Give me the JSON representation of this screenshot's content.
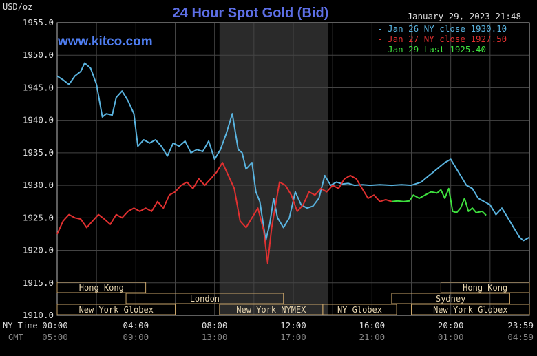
{
  "chart_data": {
    "type": "line",
    "title": "24 Hour Spot Gold (Bid)",
    "subtitle": "www.kitco.com",
    "timestamp": "January 29, 2023 21:48",
    "ylabel": "USD/oz",
    "ylim": [
      1910,
      1955
    ],
    "yticks": [
      "1955.0",
      "1950.0",
      "1945.0",
      "1940.0",
      "1935.0",
      "1930.0",
      "1925.0",
      "1920.0",
      "1915.0",
      "1910.0"
    ],
    "xlim": [
      0,
      24
    ],
    "ny_time_label": "NY Time",
    "gmt_label": "GMT",
    "ny_ticks": [
      "00:00",
      "04:00",
      "08:00",
      "12:00",
      "16:00",
      "20:00",
      "23:59"
    ],
    "gmt_ticks": [
      "05:00",
      "09:00",
      "13:00",
      "17:00",
      "21:00",
      "01:00",
      "04:59"
    ],
    "shaded_x": [
      8.25,
      13.75
    ],
    "legend": [
      {
        "text": "Jan 26 NY close 1930.10",
        "color": "#5ab4e0"
      },
      {
        "text": "Jan 27 NY close 1927.50",
        "color": "#e03030"
      },
      {
        "text": "Jan 29 Last 1925.40",
        "color": "#3ee03e"
      }
    ],
    "sessions": [
      {
        "label": "Hong Kong",
        "x0": 0,
        "x1": 4.5,
        "row": 0
      },
      {
        "label": "Hong Kong",
        "x0": 19.5,
        "x1": 24,
        "row": 0
      },
      {
        "label": "London",
        "x0": 3.5,
        "x1": 11.5,
        "row": 1
      },
      {
        "label": "Sydney",
        "x0": 17.0,
        "x1": 23.0,
        "row": 1
      },
      {
        "label": "New York Globex",
        "x0": 0,
        "x1": 6.0,
        "row": 2
      },
      {
        "label": "New York NYMEX",
        "x0": 8.25,
        "x1": 13.5,
        "row": 2
      },
      {
        "label": "NY Globex",
        "x0": 13.5,
        "x1": 17.25,
        "row": 2
      },
      {
        "label": "New York Globex",
        "x0": 18.0,
        "x1": 24,
        "row": 2
      }
    ],
    "series": [
      {
        "name": "Jan 26 NY close 1930.10",
        "color": "#5ab4e0",
        "x": [
          0,
          0.3,
          0.6,
          0.9,
          1.2,
          1.4,
          1.7,
          2.0,
          2.3,
          2.5,
          2.8,
          3.0,
          3.3,
          3.6,
          3.9,
          4.1,
          4.4,
          4.7,
          5.0,
          5.3,
          5.6,
          5.9,
          6.2,
          6.5,
          6.8,
          7.1,
          7.4,
          7.7,
          8.0,
          8.3,
          8.6,
          8.9,
          9.2,
          9.4,
          9.6,
          9.9,
          10.1,
          10.3,
          10.6,
          10.8,
          11.0,
          11.2,
          11.5,
          11.8,
          12.1,
          12.4,
          12.7,
          13.0,
          13.3,
          13.6,
          13.9,
          14.2,
          14.5,
          14.8,
          15.1,
          15.5,
          15.9,
          16.4,
          17.0,
          17.5,
          18.0,
          18.5,
          18.9,
          19.3,
          19.7,
          20.0,
          20.2,
          20.5,
          20.8,
          21.1,
          21.4,
          21.7,
          22.0,
          22.3,
          22.6,
          22.9,
          23.2,
          23.5,
          23.7,
          23.99
        ],
        "y": [
          1946.8,
          1946.2,
          1945.5,
          1946.8,
          1947.5,
          1948.8,
          1948.0,
          1945.5,
          1940.5,
          1941.0,
          1940.8,
          1943.5,
          1944.5,
          1943.0,
          1941.0,
          1936.0,
          1937.0,
          1936.5,
          1937.0,
          1936.0,
          1934.5,
          1936.5,
          1936.0,
          1936.8,
          1935.0,
          1935.5,
          1935.2,
          1936.8,
          1934.0,
          1935.5,
          1938.0,
          1941.0,
          1935.5,
          1935.0,
          1932.5,
          1933.5,
          1929.0,
          1927.5,
          1921.5,
          1924.0,
          1928.0,
          1925.0,
          1923.5,
          1925.0,
          1929.0,
          1927.0,
          1926.5,
          1926.8,
          1928.0,
          1931.5,
          1930.0,
          1930.5,
          1930.2,
          1930.3,
          1930.0,
          1930.1,
          1930.0,
          1930.1,
          1930.0,
          1930.1,
          1930.0,
          1930.5,
          1931.5,
          1932.5,
          1933.5,
          1934.0,
          1933.0,
          1931.5,
          1930.0,
          1929.5,
          1928.0,
          1927.5,
          1927.0,
          1925.5,
          1926.5,
          1925.0,
          1923.5,
          1922.0,
          1921.5,
          1922.0
        ]
      },
      {
        "name": "Jan 27 NY close 1927.50",
        "color": "#e03030",
        "x": [
          0,
          0.3,
          0.6,
          0.9,
          1.2,
          1.5,
          1.8,
          2.1,
          2.4,
          2.7,
          3.0,
          3.3,
          3.6,
          3.9,
          4.2,
          4.5,
          4.8,
          5.1,
          5.4,
          5.7,
          6.0,
          6.3,
          6.6,
          6.9,
          7.2,
          7.5,
          7.8,
          8.1,
          8.4,
          8.7,
          9.0,
          9.3,
          9.6,
          9.9,
          10.2,
          10.5,
          10.7,
          10.9,
          11.1,
          11.3,
          11.6,
          11.9,
          12.2,
          12.5,
          12.8,
          13.1,
          13.4,
          13.7,
          14.0,
          14.3,
          14.6,
          14.9,
          15.2,
          15.5,
          15.8,
          16.1,
          16.4,
          16.7,
          17.0
        ],
        "y": [
          1922.5,
          1924.5,
          1925.5,
          1925.0,
          1924.8,
          1923.5,
          1924.5,
          1925.5,
          1924.8,
          1924.0,
          1925.5,
          1925.0,
          1926.0,
          1926.5,
          1926.0,
          1926.5,
          1926.0,
          1927.5,
          1926.5,
          1928.5,
          1929.0,
          1930.0,
          1930.5,
          1929.5,
          1931.0,
          1930.0,
          1931.0,
          1932.0,
          1933.5,
          1931.5,
          1929.5,
          1924.5,
          1923.5,
          1925.0,
          1926.5,
          1923.0,
          1918.0,
          1923.5,
          1927.0,
          1930.5,
          1930.0,
          1928.5,
          1926.0,
          1927.0,
          1929.0,
          1928.5,
          1929.5,
          1929.0,
          1930.0,
          1929.5,
          1931.0,
          1931.5,
          1931.0,
          1929.5,
          1928.0,
          1928.5,
          1927.5,
          1927.8,
          1927.5
        ]
      },
      {
        "name": "Jan 29 Last 1925.40",
        "color": "#3ee03e",
        "x": [
          17.0,
          17.3,
          17.6,
          17.9,
          18.1,
          18.4,
          18.7,
          19.0,
          19.3,
          19.5,
          19.7,
          19.9,
          20.1,
          20.3,
          20.5,
          20.7,
          20.9,
          21.1,
          21.3,
          21.6,
          21.8
        ],
        "y": [
          1927.5,
          1927.6,
          1927.5,
          1927.6,
          1928.5,
          1928.0,
          1928.5,
          1929.0,
          1928.8,
          1929.3,
          1928.0,
          1929.5,
          1926.0,
          1925.8,
          1926.5,
          1928.0,
          1926.0,
          1926.5,
          1925.8,
          1926.0,
          1925.4
        ]
      }
    ]
  }
}
